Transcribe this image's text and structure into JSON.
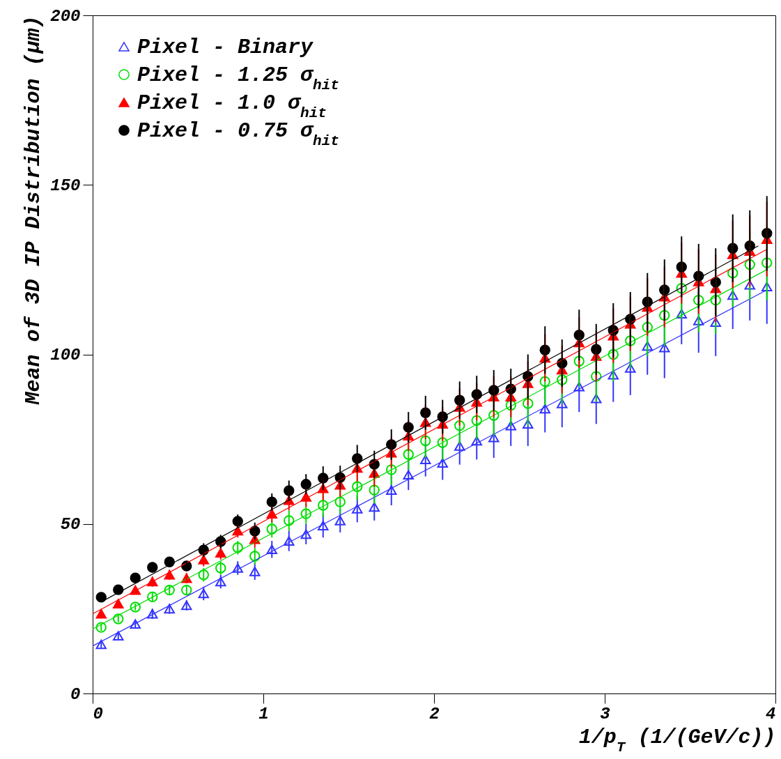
{
  "chart_data": {
    "type": "scatter",
    "xlabel": "1/p$_{T}$ (1/(GeV/c))",
    "ylabel": "Mean of 3D IP Distribution (μm)",
    "x": [
      0.05,
      0.15,
      0.25,
      0.35,
      0.45,
      0.55,
      0.65,
      0.75,
      0.85,
      0.95,
      1.05,
      1.15,
      1.25,
      1.35,
      1.45,
      1.55,
      1.65,
      1.75,
      1.85,
      1.95,
      2.05,
      2.15,
      2.25,
      2.35,
      2.45,
      2.55,
      2.65,
      2.75,
      2.85,
      2.95,
      3.05,
      3.15,
      3.25,
      3.35,
      3.45,
      3.55,
      3.65,
      3.75,
      3.85,
      3.95
    ],
    "xlim": [
      0,
      4
    ],
    "xticks": [
      0,
      1,
      2,
      3,
      4
    ],
    "ylim": [
      0,
      200
    ],
    "yticks": [
      0,
      50,
      100,
      150,
      200
    ],
    "grid": false,
    "legend": "top left",
    "series": [
      {
        "name": "Pixel - Binary",
        "color": "#3333ff",
        "marker": "triangle",
        "values": [
          14.5,
          17,
          20.5,
          23.5,
          25,
          26,
          29.5,
          33,
          37,
          36,
          42.5,
          45,
          47,
          49.5,
          51,
          54.5,
          55,
          60,
          64.5,
          69,
          68,
          73,
          74.5,
          75.5,
          79,
          79.5,
          84,
          85.5,
          90.5,
          87,
          94,
          96,
          102.5,
          102,
          112,
          110,
          109.5,
          117.5,
          120.5,
          120
        ],
        "errors": [
          1,
          1,
          1,
          1.5,
          1.5,
          1.5,
          2,
          2,
          2,
          2.5,
          2.5,
          3,
          3,
          3.5,
          3.5,
          4,
          4,
          4.5,
          4.5,
          5,
          5,
          5.5,
          5.5,
          6,
          6,
          6.5,
          7,
          7,
          7.5,
          7.5,
          8,
          8,
          8.5,
          9,
          9,
          9.5,
          10,
          10,
          10.5,
          11
        ]
      },
      {
        "name": "Pixel - 1.25 σ$_{hit}$",
        "color": "#00dd00",
        "marker": "circle",
        "values": [
          19.5,
          22,
          25.5,
          28.5,
          30.5,
          30.5,
          35,
          37,
          43,
          40.5,
          48.5,
          51,
          53,
          55.5,
          56.5,
          61,
          60,
          66,
          70.5,
          74.5,
          74,
          79,
          80.5,
          82,
          85,
          85.5,
          92,
          92.5,
          98,
          93.5,
          100,
          104,
          108,
          111.5,
          119.5,
          116,
          116,
          124,
          126.5,
          127
        ],
        "errors": [
          1,
          1,
          1,
          1.5,
          1.5,
          1.5,
          2,
          2,
          2,
          2.5,
          2.5,
          3,
          3,
          3.5,
          3.5,
          4,
          4,
          4.5,
          4.5,
          5,
          5,
          5.5,
          5.5,
          6,
          6,
          6.5,
          7,
          7,
          7.5,
          7.5,
          8,
          8,
          8.5,
          9,
          9,
          9.5,
          10,
          10,
          10.5,
          11
        ]
      },
      {
        "name": "Pixel - 1.0 σ$_{hit}$",
        "color": "#ff0000",
        "marker": "triangle",
        "values": [
          23.5,
          26.5,
          30.5,
          33,
          35,
          34,
          39.5,
          41.5,
          48,
          45.5,
          53,
          57,
          58,
          60.5,
          61.5,
          66.5,
          65,
          71,
          76,
          80,
          79.5,
          84.5,
          86,
          87.5,
          87.5,
          91.5,
          99,
          95.5,
          103.5,
          99.5,
          105.5,
          109,
          114,
          117,
          124,
          121.5,
          119.5,
          129.5,
          130.5,
          134
        ],
        "errors": [
          1,
          1,
          1,
          1.5,
          1.5,
          1.5,
          2,
          2,
          2,
          2.5,
          2.5,
          3,
          3,
          3.5,
          3.5,
          4,
          4,
          4.5,
          4.5,
          5,
          5,
          5.5,
          5.5,
          6,
          6,
          6.5,
          7,
          7,
          7.5,
          7.5,
          8,
          8,
          8.5,
          9,
          9,
          9.5,
          10,
          10,
          10.5,
          11
        ]
      },
      {
        "name": "Pixel - 0.75 σ$_{hit}$",
        "color": "#000000",
        "marker": "circle",
        "values": [
          28.4,
          30.6,
          34.1,
          37.2,
          38.8,
          37.6,
          42.3,
          44.8,
          50.8,
          47.9,
          56.5,
          59.8,
          61.7,
          63.5,
          63.7,
          69.3,
          67.6,
          73.4,
          78.5,
          82.8,
          81.6,
          86.5,
          88.2,
          89.4,
          89.8,
          93.5,
          101.3,
          97.4,
          105.7,
          101.5,
          107.1,
          110.4,
          115.5,
          119,
          125.8,
          123.1,
          121.3,
          131.3,
          132,
          135.7
        ],
        "errors": [
          1,
          1,
          1,
          1.5,
          1.5,
          1.5,
          2,
          2,
          2,
          2.5,
          2.5,
          3,
          3,
          3.5,
          3.5,
          4,
          4,
          4.5,
          4.5,
          5,
          5,
          5.5,
          5.5,
          6,
          6,
          6.5,
          7,
          7,
          7.5,
          7.5,
          8,
          8,
          8.5,
          9,
          9,
          9.5,
          10,
          10,
          10.5,
          11
        ]
      },
      {
        "type": "line",
        "color": "#3333ff",
        "x": [
          0,
          3.95
        ],
        "values": [
          14,
          119
        ]
      },
      {
        "type": "line",
        "color": "#00dd00",
        "x": [
          0,
          3.95
        ],
        "values": [
          19,
          125
        ]
      },
      {
        "type": "line",
        "color": "#ff0000",
        "x": [
          0,
          3.95
        ],
        "values": [
          23.5,
          131
        ]
      },
      {
        "type": "line",
        "color": "#000000",
        "x": [
          0.05,
          3.9
        ],
        "values": [
          27,
          132
        ]
      }
    ]
  }
}
